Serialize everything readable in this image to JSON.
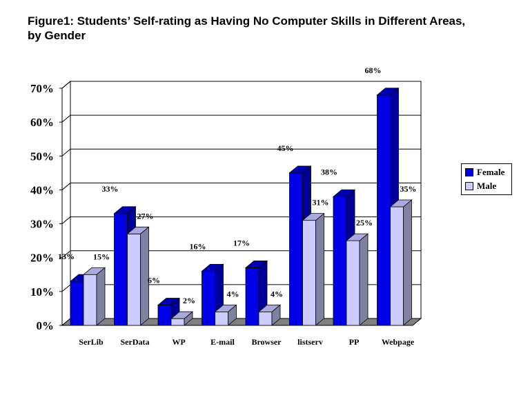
{
  "figure": {
    "title_line1": "Figure1: Students’ Self-rating as Having No Computer Skills in Different Areas,",
    "title_line2": "by Gender"
  },
  "chart_data": {
    "type": "bar",
    "categories": [
      "SerLib",
      "SerData",
      "WP",
      "E-mail",
      "Browser",
      "listserv",
      "PP",
      "Webpage"
    ],
    "series": [
      {
        "name": "Female",
        "values": [
          13,
          33,
          6,
          16,
          17,
          45,
          38,
          68
        ],
        "labels": [
          "13%",
          "33%",
          "6%",
          "16%",
          "17%",
          "45%",
          "38%",
          "68%"
        ],
        "color": "#0000e6"
      },
      {
        "name": "Male",
        "values": [
          15,
          27,
          2,
          4,
          4,
          31,
          25,
          35
        ],
        "labels": [
          "15%",
          "27%",
          "2%",
          "4%",
          "4%",
          "31%",
          "25%",
          "35%"
        ],
        "color": "#ccccff"
      }
    ],
    "yticks": [
      "0%",
      "10%",
      "20%",
      "30%",
      "40%",
      "50%",
      "60%",
      "70%"
    ],
    "ylim": [
      0,
      70
    ],
    "grid": true,
    "legend_position": "right"
  }
}
